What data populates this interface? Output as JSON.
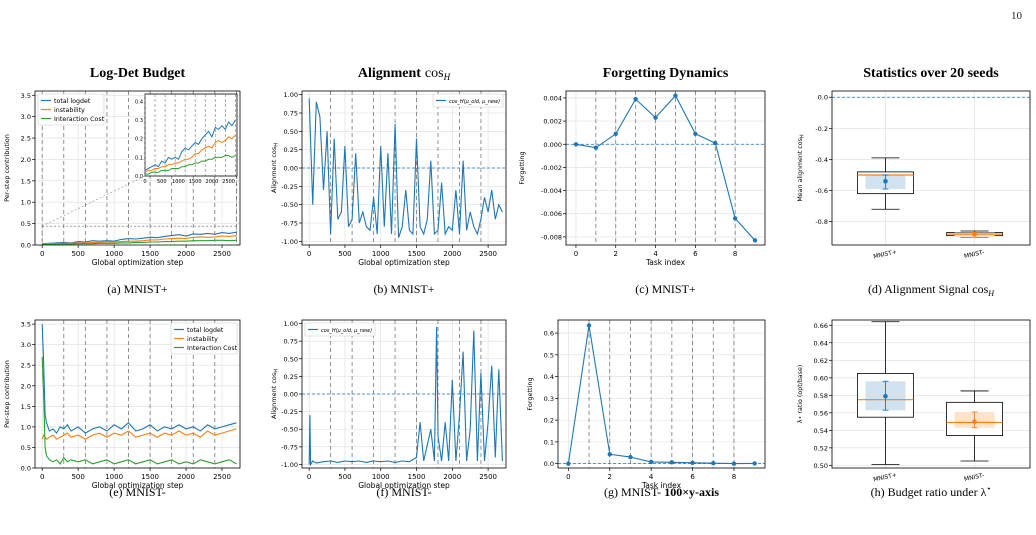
{
  "page_number": "10",
  "colors": {
    "blue": "#1f77b4",
    "orange": "#ff7f0e",
    "green": "#2ca02c",
    "grid": "#dddddd",
    "axis": "#000000"
  },
  "chart_data": [
    {
      "id": "a",
      "type": "line",
      "column_title": "Log-Det Budget",
      "caption": "(a) MNIST+",
      "xlabel": "Global optimization step",
      "ylabel": "Per-step contribution",
      "xlim": [
        -100,
        2750
      ],
      "ylim": [
        0,
        3.6
      ],
      "xticks": [
        0,
        500,
        1000,
        1500,
        2000,
        2500
      ],
      "yticks": [
        0.0,
        0.5,
        1.0,
        1.5,
        2.0,
        2.5,
        3.0,
        3.5
      ],
      "task_boundaries": [
        0,
        300,
        600,
        900,
        1200,
        1500,
        1800,
        2100,
        2400,
        2700
      ],
      "legend": {
        "position": "top-left",
        "entries": [
          "total logdet",
          "instability",
          "Interaction Cost"
        ]
      },
      "series": [
        {
          "name": "total logdet",
          "color": "#1f77b4",
          "x": [
            0,
            100,
            200,
            300,
            400,
            500,
            600,
            700,
            800,
            900,
            1000,
            1100,
            1200,
            1300,
            1400,
            1500,
            1600,
            1700,
            1800,
            1900,
            2000,
            2100,
            2200,
            2300,
            2400,
            2500,
            2600,
            2700
          ],
          "y": [
            0.03,
            0.04,
            0.05,
            0.06,
            0.05,
            0.08,
            0.07,
            0.1,
            0.09,
            0.1,
            0.09,
            0.13,
            0.15,
            0.14,
            0.16,
            0.18,
            0.17,
            0.2,
            0.22,
            0.24,
            0.21,
            0.26,
            0.25,
            0.27,
            0.25,
            0.29,
            0.27,
            0.3
          ]
        },
        {
          "name": "instability",
          "color": "#ff7f0e",
          "x": [
            0,
            100,
            200,
            300,
            400,
            500,
            600,
            700,
            800,
            900,
            1000,
            1100,
            1200,
            1300,
            1400,
            1500,
            1600,
            1700,
            1800,
            1900,
            2000,
            2100,
            2200,
            2300,
            2400,
            2500,
            2600,
            2700
          ],
          "y": [
            0.02,
            0.03,
            0.03,
            0.04,
            0.04,
            0.05,
            0.05,
            0.06,
            0.06,
            0.07,
            0.07,
            0.08,
            0.09,
            0.09,
            0.1,
            0.12,
            0.12,
            0.14,
            0.15,
            0.16,
            0.15,
            0.18,
            0.19,
            0.18,
            0.19,
            0.21,
            0.2,
            0.22
          ]
        },
        {
          "name": "Interaction Cost",
          "color": "#2ca02c",
          "x": [
            0,
            100,
            200,
            300,
            400,
            500,
            600,
            700,
            800,
            900,
            1000,
            1100,
            1200,
            1300,
            1400,
            1500,
            1600,
            1700,
            1800,
            1900,
            2000,
            2100,
            2200,
            2300,
            2400,
            2500,
            2600,
            2700
          ],
          "y": [
            0.01,
            0.01,
            0.02,
            0.02,
            0.02,
            0.03,
            0.03,
            0.03,
            0.04,
            0.04,
            0.04,
            0.05,
            0.05,
            0.06,
            0.06,
            0.07,
            0.07,
            0.08,
            0.08,
            0.09,
            0.09,
            0.1,
            0.1,
            0.1,
            0.11,
            0.11,
            0.1,
            0.11
          ]
        }
      ],
      "inset": {
        "xlim": [
          0,
          2750
        ],
        "ylim": [
          0,
          0.44
        ],
        "xticks": [
          0,
          500,
          1000,
          1500,
          2000,
          2500
        ],
        "yticks": [
          0.0,
          0.1,
          0.2,
          0.3,
          0.4
        ]
      }
    },
    {
      "id": "b",
      "type": "line",
      "column_title": "Alignment",
      "column_title_math": "cos",
      "column_title_sub": "H",
      "caption": "(b) MNIST+",
      "xlabel": "Global optimization step",
      "ylabel": "Alignment cos",
      "ylabel_sub": "H",
      "xlim": [
        -100,
        2750
      ],
      "ylim": [
        -1.05,
        1.05
      ],
      "xticks": [
        0,
        500,
        1000,
        1500,
        2000,
        2500
      ],
      "yticks": [
        -1.0,
        -0.75,
        -0.5,
        -0.25,
        0.0,
        0.25,
        0.5,
        0.75,
        1.0
      ],
      "hline": 0.0,
      "task_boundaries": [
        300,
        600,
        900,
        1200,
        1500,
        1800,
        2100,
        2400
      ],
      "legend": {
        "position": "top-right",
        "entries": [
          "cos_H(μ_old, μ_new)"
        ]
      },
      "series": [
        {
          "name": "cos_H(μ_old, μ_new)",
          "color": "#1f77b4",
          "x": [
            0,
            50,
            100,
            150,
            200,
            250,
            300,
            350,
            400,
            450,
            500,
            550,
            600,
            650,
            700,
            750,
            800,
            850,
            900,
            950,
            1000,
            1050,
            1100,
            1150,
            1200,
            1250,
            1300,
            1350,
            1400,
            1450,
            1500,
            1550,
            1600,
            1650,
            1700,
            1750,
            1800,
            1850,
            1900,
            1950,
            2000,
            2050,
            2100,
            2150,
            2200,
            2250,
            2300,
            2350,
            2400,
            2450,
            2500,
            2550,
            2600,
            2650,
            2700
          ],
          "y": [
            0.95,
            -0.5,
            0.9,
            0.7,
            -0.3,
            0.5,
            -0.9,
            0.4,
            -0.7,
            -0.6,
            0.3,
            -0.8,
            -0.7,
            0.2,
            -0.75,
            -0.6,
            -0.8,
            -0.85,
            -0.4,
            -0.9,
            0.3,
            -0.8,
            0.2,
            -0.9,
            0.6,
            -0.95,
            -0.8,
            -0.3,
            -0.85,
            -0.9,
            0.4,
            -0.8,
            -0.9,
            -0.7,
            0.1,
            -0.9,
            -0.85,
            -0.2,
            -0.9,
            -0.8,
            -0.85,
            -0.3,
            -0.9,
            0.1,
            -0.85,
            -0.6,
            -0.8,
            -0.9,
            -0.7,
            -0.4,
            -0.6,
            -0.3,
            -0.7,
            -0.5,
            -0.6
          ]
        }
      ]
    },
    {
      "id": "c",
      "type": "line",
      "column_title": "Forgetting Dynamics",
      "caption": "(c) MNIST+",
      "xlabel": "Task index",
      "ylabel": "Forgetting",
      "xlim": [
        -0.5,
        9.5
      ],
      "ylim": [
        -0.0087,
        0.0046
      ],
      "xticks": [
        0,
        2,
        4,
        6,
        8
      ],
      "yticks": [
        -0.008,
        -0.006,
        -0.004,
        -0.002,
        0.0,
        0.002,
        0.004
      ],
      "hline": 0.0,
      "task_boundaries": [
        1,
        2,
        3,
        4,
        5,
        6,
        7,
        8
      ],
      "series": [
        {
          "name": "",
          "color": "#1f77b4",
          "x": [
            0,
            1,
            2,
            3,
            4,
            5,
            6,
            7,
            8,
            9
          ],
          "y": [
            0.0,
            -0.0003,
            0.0009,
            0.0039,
            0.0023,
            0.0042,
            0.0009,
            0.0001,
            -0.0064,
            -0.0083
          ]
        }
      ]
    },
    {
      "id": "d",
      "type": "box",
      "column_title": "Statistics over 20 seeds",
      "caption": "(d) Alignment Signal cos",
      "caption_sub": "H",
      "ylabel": "Mean alignment cos",
      "ylabel_sub": "H",
      "categories": [
        "MNIST+",
        "MNIST-"
      ],
      "ylim": [
        -0.95,
        0.04
      ],
      "yticks": [
        -0.8,
        -0.6,
        -0.4,
        -0.2,
        0.0
      ],
      "hline": 0.0,
      "boxes": [
        {
          "category": "MNIST+",
          "whisker_low": -0.72,
          "q1": -0.62,
          "median": -0.5,
          "q3": -0.48,
          "whisker_high": -0.39,
          "mean": -0.54,
          "ci": [
            -0.59,
            -0.5
          ]
        },
        {
          "category": "MNIST-",
          "whisker_low": -0.9,
          "q1": -0.89,
          "median": -0.88,
          "q3": -0.87,
          "whisker_high": -0.86,
          "mean": -0.88,
          "ci": [
            -0.9,
            -0.87
          ]
        }
      ]
    },
    {
      "id": "e",
      "type": "line",
      "caption": "(e) MNIST-",
      "xlabel": "Global optimization step",
      "ylabel": "Per-step contribution",
      "xlim": [
        -100,
        2750
      ],
      "ylim": [
        0,
        3.6
      ],
      "xticks": [
        0,
        500,
        1000,
        1500,
        2000,
        2500
      ],
      "yticks": [
        0.0,
        0.5,
        1.0,
        1.5,
        2.0,
        2.5,
        3.0,
        3.5
      ],
      "task_boundaries": [
        300,
        600,
        900,
        1200,
        1500,
        1800,
        2100,
        2400
      ],
      "legend": {
        "position": "top-right",
        "entries": [
          "total logdet",
          "instability",
          "Interaction Cost"
        ]
      },
      "series": [
        {
          "name": "total logdet",
          "color": "#1f77b4",
          "x": [
            0,
            20,
            40,
            60,
            100,
            150,
            200,
            250,
            300,
            350,
            400,
            500,
            600,
            700,
            800,
            900,
            1000,
            1100,
            1200,
            1300,
            1400,
            1500,
            1600,
            1700,
            1800,
            1900,
            2000,
            2100,
            2200,
            2300,
            2400,
            2500,
            2600,
            2700
          ],
          "y": [
            3.5,
            2.6,
            1.3,
            1.1,
            0.9,
            0.95,
            0.85,
            1.0,
            0.95,
            1.05,
            0.9,
            1.0,
            0.85,
            0.95,
            1.0,
            0.9,
            1.05,
            0.95,
            1.1,
            0.9,
            0.95,
            1.05,
            0.9,
            1.0,
            0.95,
            1.05,
            0.95,
            1.0,
            0.9,
            1.05,
            0.95,
            1.0,
            1.05,
            1.1
          ]
        },
        {
          "name": "instability",
          "color": "#ff7f0e",
          "x": [
            0,
            20,
            40,
            60,
            100,
            150,
            200,
            250,
            300,
            350,
            400,
            500,
            600,
            700,
            800,
            900,
            1000,
            1100,
            1200,
            1300,
            1400,
            1500,
            1600,
            1700,
            1800,
            1900,
            2000,
            2100,
            2200,
            2300,
            2400,
            2500,
            2600,
            2700
          ],
          "y": [
            0.7,
            0.8,
            0.75,
            0.7,
            0.75,
            0.8,
            0.7,
            0.75,
            0.8,
            0.85,
            0.75,
            0.8,
            0.7,
            0.8,
            0.85,
            0.75,
            0.85,
            0.8,
            0.9,
            0.75,
            0.8,
            0.85,
            0.75,
            0.85,
            0.8,
            0.9,
            0.8,
            0.85,
            0.75,
            0.9,
            0.8,
            0.85,
            0.9,
            0.95
          ]
        },
        {
          "name": "Interaction Cost",
          "color": "#2ca02c",
          "x": [
            0,
            20,
            40,
            60,
            100,
            150,
            200,
            250,
            300,
            350,
            400,
            500,
            600,
            700,
            800,
            900,
            1000,
            1100,
            1200,
            1300,
            1400,
            1500,
            1600,
            1700,
            1800,
            1900,
            2000,
            2100,
            2200,
            2300,
            2400,
            2500,
            2600,
            2700
          ],
          "y": [
            2.7,
            1.8,
            0.5,
            0.3,
            0.2,
            0.15,
            0.2,
            0.1,
            0.25,
            0.15,
            0.2,
            0.15,
            0.2,
            0.1,
            0.15,
            0.2,
            0.1,
            0.15,
            0.2,
            0.1,
            0.15,
            0.2,
            0.1,
            0.15,
            0.2,
            0.1,
            0.15,
            0.1,
            0.2,
            0.15,
            0.1,
            0.15,
            0.2,
            0.1
          ]
        }
      ]
    },
    {
      "id": "f",
      "type": "line",
      "caption": "(f) MNIST-",
      "xlabel": "Global optimization step",
      "ylabel": "Alignment cos",
      "ylabel_sub": "H",
      "xlim": [
        -100,
        2750
      ],
      "ylim": [
        -1.05,
        1.05
      ],
      "xticks": [
        0,
        500,
        1000,
        1500,
        2000,
        2500
      ],
      "yticks": [
        -1.0,
        -0.75,
        -0.5,
        -0.25,
        0.0,
        0.25,
        0.5,
        0.75,
        1.0
      ],
      "hline": 0.0,
      "task_boundaries": [
        300,
        600,
        900,
        1200,
        1500,
        1800,
        2100,
        2400
      ],
      "legend": {
        "position": "top-left",
        "entries": [
          "cos_H(μ_old, μ_new)"
        ]
      },
      "series": [
        {
          "name": "cos_H(μ_old, μ_new)",
          "color": "#1f77b4",
          "x": [
            0,
            10,
            20,
            50,
            100,
            200,
            300,
            400,
            500,
            600,
            700,
            800,
            900,
            1000,
            1100,
            1200,
            1300,
            1400,
            1500,
            1550,
            1600,
            1700,
            1750,
            1780,
            1800,
            1850,
            1900,
            1950,
            2000,
            2050,
            2100,
            2150,
            2200,
            2250,
            2300,
            2350,
            2400,
            2450,
            2500,
            2550,
            2600,
            2650,
            2700
          ],
          "y": [
            -1.0,
            -0.3,
            -1.0,
            -0.95,
            -0.98,
            -0.96,
            -0.95,
            -0.97,
            -0.95,
            -0.96,
            -0.95,
            -0.97,
            -0.95,
            -0.96,
            -0.95,
            -0.97,
            -0.95,
            -0.96,
            -0.9,
            -0.4,
            -0.95,
            -0.5,
            -0.95,
            0.95,
            -0.6,
            -0.95,
            -0.4,
            -0.95,
            0.2,
            -0.95,
            -0.3,
            0.6,
            -0.95,
            -0.5,
            0.9,
            -0.95,
            0.3,
            -0.95,
            -0.4,
            0.4,
            -0.9,
            0.35,
            -0.95
          ]
        }
      ]
    },
    {
      "id": "g",
      "type": "line",
      "caption": "(g) MNIST- ",
      "caption_bold": "100×y-axis",
      "xlabel": "Task index",
      "ylabel": "Forgetting",
      "xlim": [
        -0.5,
        9.5
      ],
      "ylim": [
        -0.02,
        0.66
      ],
      "xticks": [
        0,
        2,
        4,
        6,
        8
      ],
      "yticks": [
        0.0,
        0.1,
        0.2,
        0.3,
        0.4,
        0.5,
        0.6
      ],
      "hline": 0.0,
      "task_boundaries": [
        1,
        2,
        3,
        4,
        5,
        6,
        7,
        8
      ],
      "series": [
        {
          "name": "",
          "color": "#1f77b4",
          "x": [
            0,
            1,
            2,
            3,
            4,
            5,
            6,
            7,
            8,
            9
          ],
          "y": [
            0.0,
            0.635,
            0.043,
            0.03,
            0.008,
            0.006,
            0.004,
            0.002,
            0.0,
            0.001
          ]
        }
      ]
    },
    {
      "id": "h",
      "type": "box",
      "caption": "(h) Budget ratio under λ",
      "caption_sup": "⋆",
      "ylabel": "λ⋆ ratio (opt/base)",
      "categories": [
        "MNIST+",
        "MNIST-"
      ],
      "ylim": [
        0.497,
        0.666
      ],
      "yticks": [
        0.5,
        0.52,
        0.54,
        0.56,
        0.58,
        0.6,
        0.62,
        0.64,
        0.66
      ],
      "boxes": [
        {
          "category": "MNIST+",
          "whisker_low": 0.501,
          "q1": 0.555,
          "median": 0.575,
          "q3": 0.605,
          "whisker_high": 0.664,
          "mean": 0.579,
          "ci": [
            0.563,
            0.596
          ]
        },
        {
          "category": "MNIST-",
          "whisker_low": 0.505,
          "q1": 0.534,
          "median": 0.549,
          "q3": 0.572,
          "whisker_high": 0.585,
          "mean": 0.55,
          "ci": [
            0.543,
            0.561
          ]
        }
      ]
    }
  ]
}
